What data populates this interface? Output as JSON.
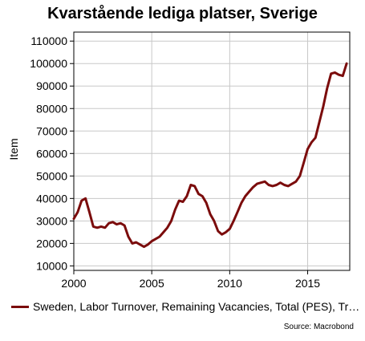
{
  "chart_data": {
    "type": "line",
    "title": "Kvarstående lediga platser, Sverige",
    "ylabel": "Item",
    "xlabel": "",
    "xlim": [
      2000,
      2017.7
    ],
    "ylim": [
      8000,
      114000
    ],
    "x_ticks": [
      2000,
      2005,
      2010,
      2015
    ],
    "y_ticks": [
      10000,
      20000,
      30000,
      40000,
      50000,
      60000,
      70000,
      80000,
      90000,
      100000,
      110000
    ],
    "grid": true,
    "legend_position": "bottom",
    "series": [
      {
        "name": "Sweden, Labor Turnover, Remaining Vacancies, Total (PES), Tr…",
        "color": "#7b0c0c",
        "points": [
          [
            2000.0,
            31000
          ],
          [
            2000.25,
            34000
          ],
          [
            2000.5,
            39000
          ],
          [
            2000.75,
            40000
          ],
          [
            2001.0,
            34000
          ],
          [
            2001.25,
            27500
          ],
          [
            2001.5,
            27000
          ],
          [
            2001.75,
            27500
          ],
          [
            2002.0,
            27000
          ],
          [
            2002.25,
            29000
          ],
          [
            2002.5,
            29500
          ],
          [
            2002.75,
            28500
          ],
          [
            2003.0,
            29000
          ],
          [
            2003.25,
            28000
          ],
          [
            2003.5,
            23000
          ],
          [
            2003.75,
            20000
          ],
          [
            2004.0,
            20500
          ],
          [
            2004.25,
            19500
          ],
          [
            2004.5,
            18500
          ],
          [
            2004.75,
            19500
          ],
          [
            2005.0,
            21000
          ],
          [
            2005.25,
            22000
          ],
          [
            2005.5,
            23000
          ],
          [
            2005.75,
            25000
          ],
          [
            2006.0,
            27000
          ],
          [
            2006.25,
            30000
          ],
          [
            2006.5,
            35000
          ],
          [
            2006.75,
            39000
          ],
          [
            2007.0,
            38500
          ],
          [
            2007.25,
            41000
          ],
          [
            2007.5,
            46000
          ],
          [
            2007.75,
            45500
          ],
          [
            2008.0,
            42000
          ],
          [
            2008.25,
            41000
          ],
          [
            2008.5,
            38000
          ],
          [
            2008.75,
            33000
          ],
          [
            2009.0,
            30000
          ],
          [
            2009.25,
            25500
          ],
          [
            2009.5,
            24000
          ],
          [
            2009.75,
            25000
          ],
          [
            2010.0,
            26500
          ],
          [
            2010.25,
            30000
          ],
          [
            2010.5,
            34000
          ],
          [
            2010.75,
            38000
          ],
          [
            2011.0,
            41000
          ],
          [
            2011.25,
            43000
          ],
          [
            2011.5,
            45000
          ],
          [
            2011.75,
            46500
          ],
          [
            2012.0,
            47000
          ],
          [
            2012.25,
            47500
          ],
          [
            2012.5,
            46000
          ],
          [
            2012.75,
            45500
          ],
          [
            2013.0,
            46000
          ],
          [
            2013.25,
            47000
          ],
          [
            2013.5,
            46000
          ],
          [
            2013.75,
            45500
          ],
          [
            2014.0,
            46500
          ],
          [
            2014.25,
            47500
          ],
          [
            2014.5,
            50000
          ],
          [
            2014.75,
            56000
          ],
          [
            2015.0,
            62000
          ],
          [
            2015.25,
            65000
          ],
          [
            2015.5,
            67000
          ],
          [
            2015.75,
            74000
          ],
          [
            2016.0,
            81000
          ],
          [
            2016.25,
            89000
          ],
          [
            2016.5,
            95500
          ],
          [
            2016.75,
            96000
          ],
          [
            2017.0,
            95000
          ],
          [
            2017.25,
            94500
          ],
          [
            2017.5,
            100000
          ]
        ]
      }
    ],
    "source": "Source: Macrobond"
  }
}
